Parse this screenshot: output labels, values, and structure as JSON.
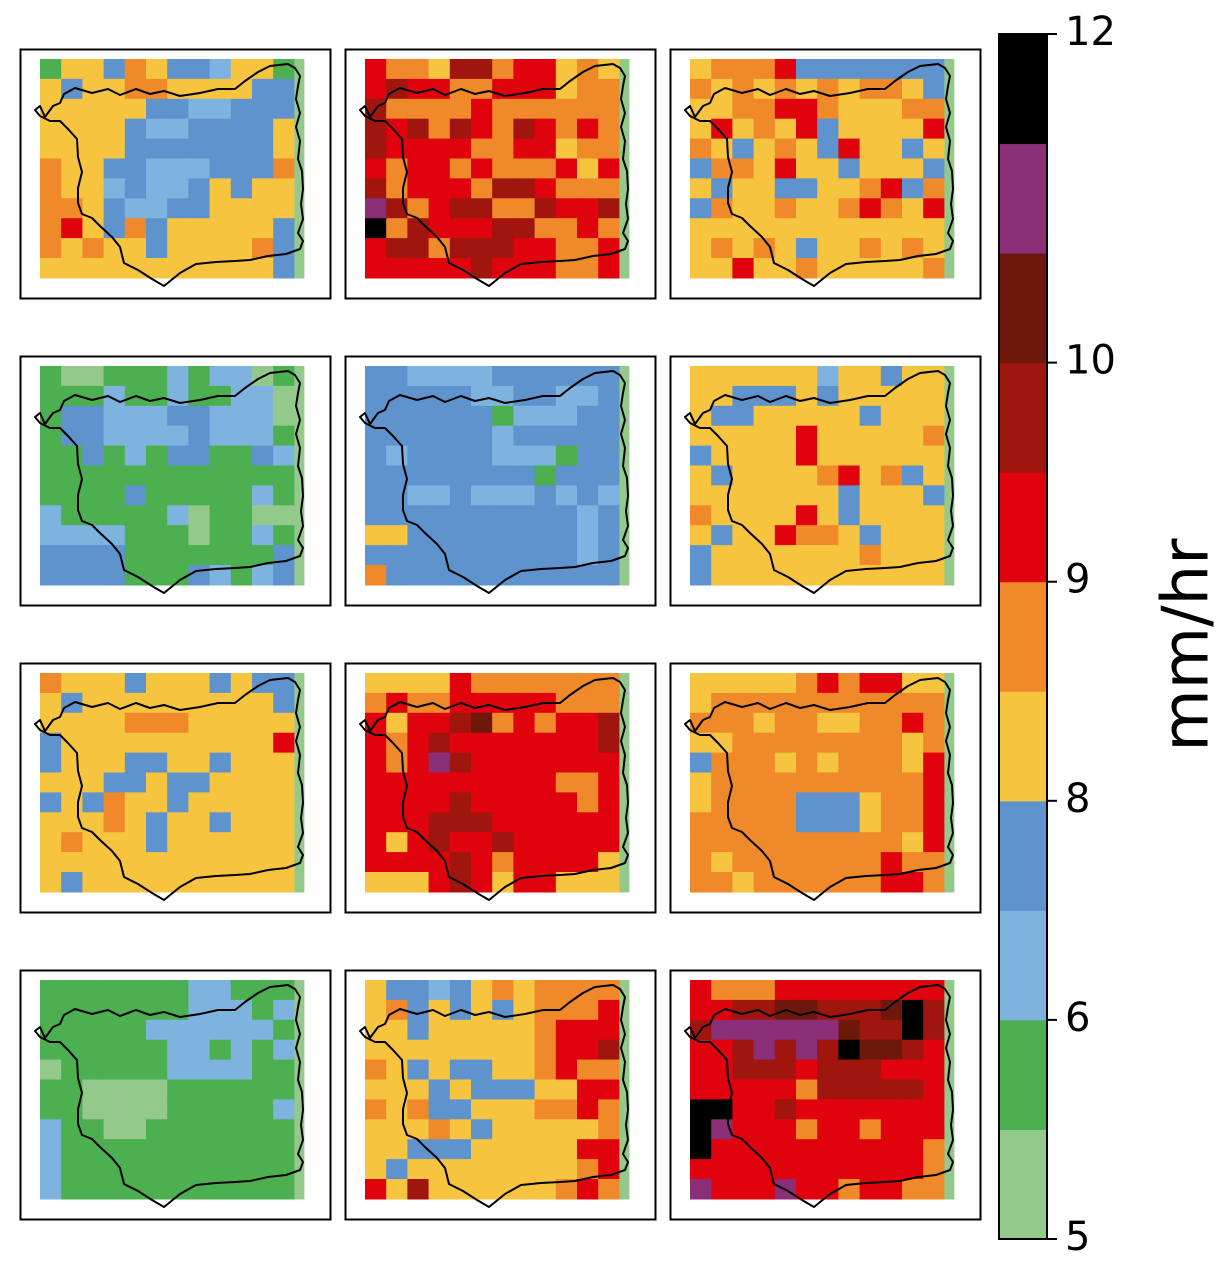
{
  "chart_data": {
    "type": "heatmap",
    "layout": {
      "rows": 4,
      "cols": 3
    },
    "colorbar": {
      "label": "mm/hr",
      "boundaries": [
        5,
        5.5,
        6,
        6.5,
        7,
        8,
        8.5,
        9,
        9.5,
        10,
        10.5,
        11,
        12
      ],
      "colors": [
        "#94c98c",
        "#4caf50",
        "#7eb3e0",
        "#5f93cd",
        "#f7c43f",
        "#f0892a",
        "#e0030d",
        "#a0150e",
        "#6e180c",
        "#8a2e78",
        "#000000"
      ],
      "ticks": [
        {
          "value": 5,
          "label": "5",
          "pos": 0
        },
        {
          "value": 6,
          "label": "6",
          "pos": 2
        },
        {
          "value": 8,
          "label": "8",
          "pos": 4
        },
        {
          "value": 9,
          "label": "9",
          "pos": 6
        },
        {
          "value": 10,
          "label": "10",
          "pos": 8
        },
        {
          "value": 12,
          "label": "12",
          "pos": 11
        }
      ]
    },
    "panels": [
      {
        "panel": 1,
        "grid": [
          "1443543324410",
          "4344554444330",
          "4444433223330",
          "4444322333340",
          "4444333333340",
          "5443322233350",
          "5442322343440",
          "5543223344440",
          "5643534444430",
          "5454434444530",
          "4444444444430"
        ]
      },
      {
        "panel": 2,
        "grid": [
          "6554775664540",
          "6766556664550",
          "7555565555550",
          "7675765765650",
          "7666655664550",
          "6566565556460",
          "7566657765550",
          "9756775576670",
          "A576667755650",
          "6775777665560",
          "6666676665560"
        ]
      },
      {
        "panel": 3,
        "grid": [
          "4555633333330",
          "5454545455430",
          "4455665444550",
          "4645463444460",
          "5434543644340",
          "3554644344430",
          "4344334456350",
          "3544544565460",
          "4444444444440",
          "4545434454540",
          "4464454444450"
        ]
      },
      {
        "panel": 4,
        "grid": [
          "1001112122010",
          "1112112112200",
          "1332223322200",
          "1332222322210",
          "1131213311320",
          "1111111111110",
          "1111311111210",
          "2111112011000",
          "2222111011210",
          "3333111111130",
          "3333111321230"
        ]
      },
      {
        "panel": 5,
        "grid": [
          "3322223333330",
          "3333322332230",
          "3333331222330",
          "3333332333330",
          "3233332221330",
          "3333333313330",
          "3322322232320",
          "3333333333230",
          "4433333333230",
          "3333333333230",
          "5333333333330"
        ]
      },
      {
        "panel": 6,
        "grid": [
          "4444442443440",
          "4433343444440",
          "4334444434440",
          "4444464444450",
          "3444464444440",
          "4344445645340",
          "4444444344430",
          "5444464344440",
          "4344655434440",
          "3444444454440",
          "3444444444440"
        ]
      },
      {
        "panel": 7,
        "grid": [
          "5444344434330",
          "4344444444430",
          "4444555444440",
          "3444444444460",
          "3444334434440",
          "4443343344440",
          "3435443444440",
          "4445434434440",
          "4544434444440",
          "4444444444440",
          "4344444444440"
        ]
      },
      {
        "panel": 8,
        "grid": [
          "4444655555550",
          "5655666665550",
          "6466785656670",
          "6567666666670",
          "6569766666660",
          "6666666665560",
          "6666766666560",
          "6667776666660",
          "6467667666660",
          "6666765666640",
          "4446764664440"
        ]
      },
      {
        "panel": 9,
        "grid": [
          "4444456566440",
          "4555555555550",
          "5554554455650",
          "4455555555450",
          "3555454555460",
          "4555555555560",
          "4555533345560",
          "5555533345560",
          "5555555555460",
          "5455555556550",
          "5545555556650"
        ]
      },
      {
        "panel": 10,
        "grid": [
          "1111111221110",
          "1111111222120",
          "1111122222210",
          "1111112212120",
          "0111112222110",
          "1100001111110",
          "1100001111120",
          "2110011111110",
          "2111111111110",
          "2111111111110",
          "2111111111110"
        ]
      },
      {
        "panel": 11,
        "grid": [
          "4332345455550",
          "4534343455560",
          "4434444456660",
          "4444444456670",
          "5434334456550",
          "4443433344660",
          "5453344455650",
          "4445434444450",
          "4433344444660",
          "4344444444560",
          "6474444445650"
        ]
      },
      {
        "panel": 12,
        "grid": [
          "6555666666660",
          "6677887778A70",
          "7999999877A70",
          "6679797A88760",
          "6677767776660",
          "6666657777760",
          "AA66766666660",
          "A966656656660",
          "A666666666650",
          "6666666666650",
          "9666966566550"
        ]
      }
    ]
  }
}
